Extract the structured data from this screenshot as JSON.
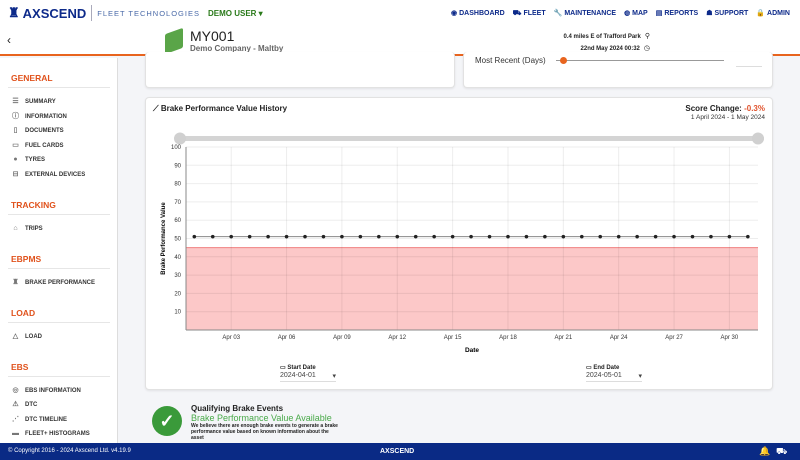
{
  "header": {
    "brand": "AXSCEND",
    "tagline": "FLEET TECHNOLOGIES",
    "user": "DEMO USER ▾",
    "nav": [
      {
        "label": "DASHBOARD",
        "icon": "gauge-icon",
        "glyph": "◉"
      },
      {
        "label": "FLEET",
        "icon": "truck-icon",
        "glyph": "⛟"
      },
      {
        "label": "MAINTENANCE",
        "icon": "wrench-icon",
        "glyph": "🔧"
      },
      {
        "label": "MAP",
        "icon": "globe-icon",
        "glyph": "◍"
      },
      {
        "label": "REPORTS",
        "icon": "report-icon",
        "glyph": "▤"
      },
      {
        "label": "SUPPORT",
        "icon": "support-icon",
        "glyph": "☗"
      },
      {
        "label": "ADMIN",
        "icon": "lock-icon",
        "glyph": "🔒"
      }
    ]
  },
  "asset": {
    "id": "MY001",
    "company": "Demo Company - Maltby",
    "location": "0.4 miles E of Trafford Park",
    "timestamp": "22nd May 2024 00:32"
  },
  "sidebar": {
    "sections": [
      {
        "title": "GENERAL",
        "items": [
          {
            "label": "SUMMARY",
            "icon": "list-icon",
            "glyph": "☰"
          },
          {
            "label": "INFORMATION",
            "icon": "info-icon",
            "glyph": "ⓘ"
          },
          {
            "label": "DOCUMENTS",
            "icon": "document-icon",
            "glyph": "▯"
          },
          {
            "label": "FUEL CARDS",
            "icon": "card-icon",
            "glyph": "▭"
          },
          {
            "label": "TYRES",
            "icon": "tyre-icon",
            "glyph": "●"
          },
          {
            "label": "EXTERNAL DEVICES",
            "icon": "device-icon",
            "glyph": "⊟"
          }
        ]
      },
      {
        "title": "TRACKING",
        "items": [
          {
            "label": "TRIPS",
            "icon": "trip-icon",
            "glyph": "⌂"
          }
        ]
      },
      {
        "title": "EBPMS",
        "items": [
          {
            "label": "BRAKE PERFORMANCE",
            "icon": "brake-icon",
            "glyph": "♜"
          }
        ]
      },
      {
        "title": "LOAD",
        "items": [
          {
            "label": "LOAD",
            "icon": "weight-icon",
            "glyph": "△"
          }
        ]
      },
      {
        "title": "EBS",
        "items": [
          {
            "label": "EBS INFORMATION",
            "icon": "ebs-icon",
            "glyph": "◎"
          },
          {
            "label": "DTC",
            "icon": "warning-icon",
            "glyph": "⚠"
          },
          {
            "label": "DTC TIMELINE",
            "icon": "timeline-icon",
            "glyph": "⋰"
          },
          {
            "label": "FLEET+ HISTOGRAMS",
            "icon": "histogram-icon",
            "glyph": "▬"
          }
        ]
      }
    ]
  },
  "recent": {
    "label": "Most Recent (Days)",
    "value_fraction": 0.05
  },
  "chart_card": {
    "title": "Brake Performance Value History",
    "score_label": "Score Change:",
    "score_value": "-0.3%",
    "range": "1 April 2024 - 1 May 2024",
    "start_label": "Start Date",
    "start_value": "2024-04-01",
    "end_label": "End Date",
    "end_value": "2024-05-01"
  },
  "chart_data": {
    "type": "line",
    "xlabel": "Date",
    "ylabel": "Brake Performance Value",
    "ylim": [
      0,
      100
    ],
    "grid": true,
    "yticks": [
      10,
      20,
      30,
      40,
      50,
      60,
      70,
      80,
      90,
      100
    ],
    "xticks": [
      "Apr 03",
      "Apr 06",
      "Apr 09",
      "Apr 12",
      "Apr 15",
      "Apr 18",
      "Apr 21",
      "Apr 24",
      "Apr 27",
      "Apr 30"
    ],
    "x": [
      "2024-04-01",
      "2024-04-02",
      "2024-04-03",
      "2024-04-04",
      "2024-04-05",
      "2024-04-06",
      "2024-04-07",
      "2024-04-08",
      "2024-04-09",
      "2024-04-10",
      "2024-04-11",
      "2024-04-12",
      "2024-04-13",
      "2024-04-14",
      "2024-04-15",
      "2024-04-16",
      "2024-04-17",
      "2024-04-18",
      "2024-04-19",
      "2024-04-20",
      "2024-04-21",
      "2024-04-22",
      "2024-04-23",
      "2024-04-24",
      "2024-04-25",
      "2024-04-26",
      "2024-04-27",
      "2024-04-28",
      "2024-04-29",
      "2024-04-30",
      "2024-05-01"
    ],
    "values": [
      51,
      51,
      51,
      51,
      51,
      51,
      51,
      51,
      51,
      51,
      51,
      51,
      51,
      51,
      51,
      51,
      51,
      51,
      51,
      51,
      51,
      51,
      51,
      51,
      51,
      51,
      51,
      51,
      51,
      51,
      51
    ],
    "threshold_band": {
      "from": 0,
      "to": 45,
      "color": "#fcc8c8"
    },
    "line_color": "#888888",
    "point_color": "#222222"
  },
  "qualifying": {
    "title": "Qualifying Brake Events",
    "status": "Brake Performance Value Available",
    "desc": "We believe there are enough brake events to generate a brake performance value based on known information about the asset"
  },
  "footer": {
    "copyright": "© Copyright 2016 - 2024 Axscend Ltd. v4.19.9",
    "brand": "AXSCEND"
  },
  "colors": {
    "accent": "#e8641e",
    "navy": "#0a2a85",
    "green": "#3a9a3a"
  }
}
